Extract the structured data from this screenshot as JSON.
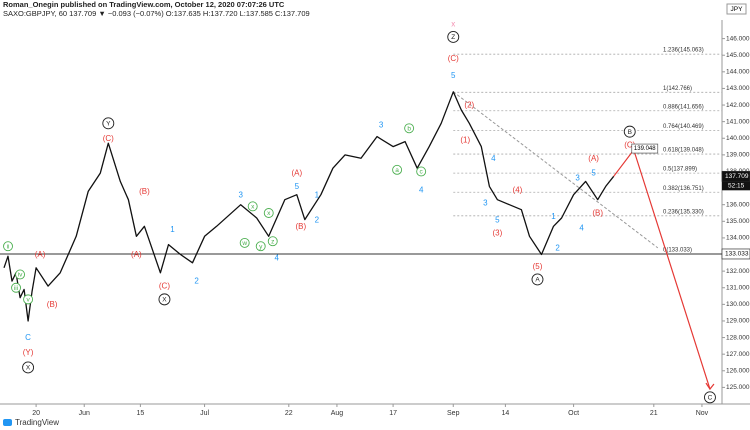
{
  "header": {
    "line1": "Roman_Onegin published on TradingView.com, October 12, 2020 07:07:26 UTC",
    "line2": "SAXO:GBPJPY, 60  137.709  ▼ −0.093 (−0.07%)  O:137.635  H:137.720  L:137.585  C:137.709",
    "currency": "JPY",
    "footer": "TradingView"
  },
  "chart_data": {
    "type": "line",
    "xlim": [
      "2020-05-11",
      "2020-11-07"
    ],
    "ylim": [
      124,
      147
    ],
    "xticks": [
      {
        "value": "2020-05-20",
        "label": "20"
      },
      {
        "value": "2020-06-01",
        "label": "Jun"
      },
      {
        "value": "2020-06-15",
        "label": "15"
      },
      {
        "value": "2020-07-01",
        "label": "Jul"
      },
      {
        "value": "2020-07-22",
        "label": "22"
      },
      {
        "value": "2020-08-03",
        "label": "Aug"
      },
      {
        "value": "2020-08-17",
        "label": "17"
      },
      {
        "value": "2020-09-01",
        "label": "Sep"
      },
      {
        "value": "2020-09-14",
        "label": "14"
      },
      {
        "value": "2020-10-01",
        "label": "Oct"
      },
      {
        "value": "2020-10-21",
        "label": "21"
      },
      {
        "value": "2020-11-02",
        "label": "Nov"
      }
    ],
    "yticks": [
      {
        "value": 146,
        "label": "146.000"
      },
      {
        "value": 145,
        "label": "145.000"
      },
      {
        "value": 144,
        "label": "144.000"
      },
      {
        "value": 143,
        "label": "143.000"
      },
      {
        "value": 142,
        "label": "142.000"
      },
      {
        "value": 141,
        "label": "141.000"
      },
      {
        "value": 140,
        "label": "140.000"
      },
      {
        "value": 139,
        "label": "139.000"
      },
      {
        "value": 138,
        "label": "138.000"
      },
      {
        "value": 136,
        "label": "136.000"
      },
      {
        "value": 135,
        "label": "135.000"
      },
      {
        "value": 134,
        "label": "134.000"
      },
      {
        "value": 132,
        "label": "132.000"
      },
      {
        "value": 131,
        "label": "131.000"
      },
      {
        "value": 130,
        "label": "130.000"
      },
      {
        "value": 129,
        "label": "129.000"
      },
      {
        "value": 128,
        "label": "128.000"
      },
      {
        "value": 127,
        "label": "127.000"
      },
      {
        "value": 126,
        "label": "126.000"
      },
      {
        "value": 125,
        "label": "125.000"
      }
    ],
    "series": [
      {
        "name": "GBPJPY",
        "color": "#111111",
        "x": [
          "2020-05-12",
          "2020-05-13",
          "2020-05-14",
          "2020-05-15",
          "2020-05-16",
          "2020-05-17",
          "2020-05-18",
          "2020-05-19",
          "2020-05-20",
          "2020-05-23",
          "2020-05-26",
          "2020-05-30",
          "2020-06-02",
          "2020-06-05",
          "2020-06-07",
          "2020-06-10",
          "2020-06-12",
          "2020-06-14",
          "2020-06-16",
          "2020-06-20",
          "2020-06-22",
          "2020-06-25",
          "2020-06-28",
          "2020-07-01",
          "2020-07-04",
          "2020-07-10",
          "2020-07-14",
          "2020-07-17",
          "2020-07-21",
          "2020-07-24",
          "2020-07-26",
          "2020-07-30",
          "2020-08-02",
          "2020-08-05",
          "2020-08-09",
          "2020-08-13",
          "2020-08-17",
          "2020-08-20",
          "2020-08-23",
          "2020-08-26",
          "2020-08-29",
          "2020-09-01",
          "2020-09-03",
          "2020-09-05",
          "2020-09-08",
          "2020-09-10",
          "2020-09-12",
          "2020-09-15",
          "2020-09-18",
          "2020-09-20",
          "2020-09-23",
          "2020-09-26",
          "2020-09-28",
          "2020-10-01",
          "2020-10-04",
          "2020-10-07",
          "2020-10-09",
          "2020-10-11"
        ],
        "values": [
          132.2,
          132.9,
          131.4,
          131.9,
          130.4,
          130.9,
          129.0,
          130.8,
          132.2,
          131.1,
          131.9,
          134.1,
          136.8,
          137.9,
          139.7,
          137.4,
          136.3,
          134.1,
          134.7,
          131.9,
          133.6,
          133.0,
          132.5,
          134.1,
          134.7,
          136.0,
          135.2,
          134.1,
          136.3,
          136.6,
          135.1,
          136.6,
          138.2,
          139.0,
          138.8,
          140.1,
          139.5,
          139.8,
          138.2,
          139.5,
          140.9,
          142.8,
          141.7,
          140.9,
          139.5,
          137.1,
          136.3,
          136.0,
          135.7,
          134.1,
          133.0,
          134.7,
          135.2,
          136.6,
          137.4,
          136.3,
          137.1,
          137.709
        ]
      }
    ],
    "fib_levels": [
      {
        "label": "1.236(145.063)",
        "value": 145.063
      },
      {
        "label": "1(142.766)",
        "value": 142.766
      },
      {
        "label": "0.886(141.656)",
        "value": 141.656
      },
      {
        "label": "0.764(140.469)",
        "value": 140.469
      },
      {
        "label": "0.618(139.048)",
        "value": 139.048
      },
      {
        "label": "0.5(137.899)",
        "value": 137.899
      },
      {
        "label": "0.382(136.751)",
        "value": 136.751
      },
      {
        "label": "0.236(135.330)",
        "value": 135.33
      },
      {
        "label": "0(133.033)",
        "value": 133.033
      }
    ],
    "fib_start": "2020-09-01",
    "trendline": {
      "x": [
        "2020-09-01",
        "2020-10-22"
      ],
      "y": [
        142.8,
        133.4
      ],
      "color": "#999999"
    },
    "projection": {
      "x": [
        "2020-10-11",
        "2020-10-16",
        "2020-11-04"
      ],
      "y": [
        137.709,
        139.3,
        124.9
      ],
      "color": "#e53935"
    },
    "price_labels": [
      {
        "label": "137.709",
        "value": 137.709,
        "sub": "52:15"
      },
      {
        "label": "133.033",
        "value": 133.033
      },
      {
        "label": "139.048",
        "value": 139.048,
        "x": "2020-10-16"
      }
    ],
    "annotations": [
      {
        "text": "ii",
        "x": "2020-05-13",
        "y": 133.5,
        "color": "#4caf50",
        "style": "circle"
      },
      {
        "text": "iii",
        "x": "2020-05-15",
        "y": 131.0,
        "color": "#4caf50",
        "style": "circle"
      },
      {
        "text": "iv",
        "x": "2020-05-16",
        "y": 131.8,
        "color": "#4caf50",
        "style": "circle"
      },
      {
        "text": "v",
        "x": "2020-05-18",
        "y": 130.3,
        "color": "#4caf50",
        "style": "circle"
      },
      {
        "text": "C",
        "x": "2020-05-18",
        "y": 128.0,
        "color": "#2196f3"
      },
      {
        "text": "(Y)",
        "x": "2020-05-18",
        "y": 127.1,
        "color": "#e53935"
      },
      {
        "text": "X",
        "x": "2020-05-18",
        "y": 126.2,
        "color": "#222222",
        "style": "circle"
      },
      {
        "text": "(A)",
        "x": "2020-05-21",
        "y": 133.0,
        "color": "#e53935"
      },
      {
        "text": "(B)",
        "x": "2020-05-24",
        "y": 130.0,
        "color": "#e53935"
      },
      {
        "text": "Y",
        "x": "2020-06-07",
        "y": 140.9,
        "color": "#222222",
        "style": "circle"
      },
      {
        "text": "(C)",
        "x": "2020-06-07",
        "y": 140.0,
        "color": "#e53935"
      },
      {
        "text": "(B)",
        "x": "2020-06-16",
        "y": 136.8,
        "color": "#e53935"
      },
      {
        "text": "(A)",
        "x": "2020-06-14",
        "y": 133.0,
        "color": "#e53935"
      },
      {
        "text": "1",
        "x": "2020-06-23",
        "y": 134.5,
        "color": "#2196f3"
      },
      {
        "text": "(C)",
        "x": "2020-06-21",
        "y": 131.1,
        "color": "#e53935"
      },
      {
        "text": "X",
        "x": "2020-06-21",
        "y": 130.3,
        "color": "#222222",
        "style": "circle"
      },
      {
        "text": "2",
        "x": "2020-06-29",
        "y": 131.4,
        "color": "#2196f3"
      },
      {
        "text": "3",
        "x": "2020-07-10",
        "y": 136.6,
        "color": "#2196f3"
      },
      {
        "text": "x",
        "x": "2020-07-13",
        "y": 135.9,
        "color": "#4caf50",
        "style": "circle"
      },
      {
        "text": "w",
        "x": "2020-07-11",
        "y": 133.7,
        "color": "#4caf50",
        "style": "circle"
      },
      {
        "text": "y",
        "x": "2020-07-15",
        "y": 133.5,
        "color": "#4caf50",
        "style": "circle"
      },
      {
        "text": "x",
        "x": "2020-07-17",
        "y": 135.5,
        "color": "#4caf50",
        "style": "circle"
      },
      {
        "text": "z",
        "x": "2020-07-18",
        "y": 133.8,
        "color": "#4caf50",
        "style": "circle"
      },
      {
        "text": "4",
        "x": "2020-07-19",
        "y": 132.8,
        "color": "#2196f3"
      },
      {
        "text": "(A)",
        "x": "2020-07-24",
        "y": 137.9,
        "color": "#e53935"
      },
      {
        "text": "5",
        "x": "2020-07-24",
        "y": 137.1,
        "color": "#2196f3"
      },
      {
        "text": "1",
        "x": "2020-07-29",
        "y": 136.6,
        "color": "#2196f3"
      },
      {
        "text": "(B)",
        "x": "2020-07-25",
        "y": 134.7,
        "color": "#e53935"
      },
      {
        "text": "2",
        "x": "2020-07-29",
        "y": 135.1,
        "color": "#2196f3"
      },
      {
        "text": "3",
        "x": "2020-08-14",
        "y": 140.8,
        "color": "#2196f3"
      },
      {
        "text": "b",
        "x": "2020-08-21",
        "y": 140.6,
        "color": "#4caf50",
        "style": "circle"
      },
      {
        "text": "a",
        "x": "2020-08-18",
        "y": 138.1,
        "color": "#4caf50",
        "style": "circle"
      },
      {
        "text": "c",
        "x": "2020-08-24",
        "y": 138.0,
        "color": "#4caf50",
        "style": "circle"
      },
      {
        "text": "4",
        "x": "2020-08-24",
        "y": 136.9,
        "color": "#2196f3"
      },
      {
        "text": "x",
        "x": "2020-09-01",
        "y": 146.9,
        "color": "#f48fb1"
      },
      {
        "text": "Z",
        "x": "2020-09-01",
        "y": 146.1,
        "color": "#222222",
        "style": "circle"
      },
      {
        "text": "(C)",
        "x": "2020-09-01",
        "y": 144.8,
        "color": "#e53935"
      },
      {
        "text": "5",
        "x": "2020-09-01",
        "y": 143.8,
        "color": "#2196f3"
      },
      {
        "text": "(2)",
        "x": "2020-09-05",
        "y": 142.0,
        "color": "#e53935"
      },
      {
        "text": "(1)",
        "x": "2020-09-04",
        "y": 139.9,
        "color": "#e53935"
      },
      {
        "text": "4",
        "x": "2020-09-11",
        "y": 138.8,
        "color": "#2196f3"
      },
      {
        "text": "3",
        "x": "2020-09-09",
        "y": 136.1,
        "color": "#2196f3"
      },
      {
        "text": "(4)",
        "x": "2020-09-17",
        "y": 136.9,
        "color": "#e53935"
      },
      {
        "text": "5",
        "x": "2020-09-12",
        "y": 135.1,
        "color": "#2196f3"
      },
      {
        "text": "(3)",
        "x": "2020-09-12",
        "y": 134.3,
        "color": "#e53935"
      },
      {
        "text": "(5)",
        "x": "2020-09-22",
        "y": 132.3,
        "color": "#e53935"
      },
      {
        "text": "A",
        "x": "2020-09-22",
        "y": 131.5,
        "color": "#222222",
        "style": "circle"
      },
      {
        "text": "1",
        "x": "2020-09-26",
        "y": 135.3,
        "color": "#2196f3"
      },
      {
        "text": "2",
        "x": "2020-09-27",
        "y": 133.4,
        "color": "#2196f3"
      },
      {
        "text": "3",
        "x": "2020-10-02",
        "y": 137.6,
        "color": "#2196f3"
      },
      {
        "text": "4",
        "x": "2020-10-03",
        "y": 134.6,
        "color": "#2196f3"
      },
      {
        "text": "5",
        "x": "2020-10-06",
        "y": 137.9,
        "color": "#2196f3"
      },
      {
        "text": "(A)",
        "x": "2020-10-06",
        "y": 138.8,
        "color": "#e53935"
      },
      {
        "text": "(B)",
        "x": "2020-10-07",
        "y": 135.5,
        "color": "#e53935"
      },
      {
        "text": "(C)",
        "x": "2020-10-15",
        "y": 139.6,
        "color": "#e53935"
      },
      {
        "text": "B",
        "x": "2020-10-15",
        "y": 140.4,
        "color": "#222222",
        "style": "circle"
      },
      {
        "text": "C",
        "x": "2020-11-04",
        "y": 124.4,
        "color": "#222222",
        "style": "circle"
      }
    ]
  }
}
